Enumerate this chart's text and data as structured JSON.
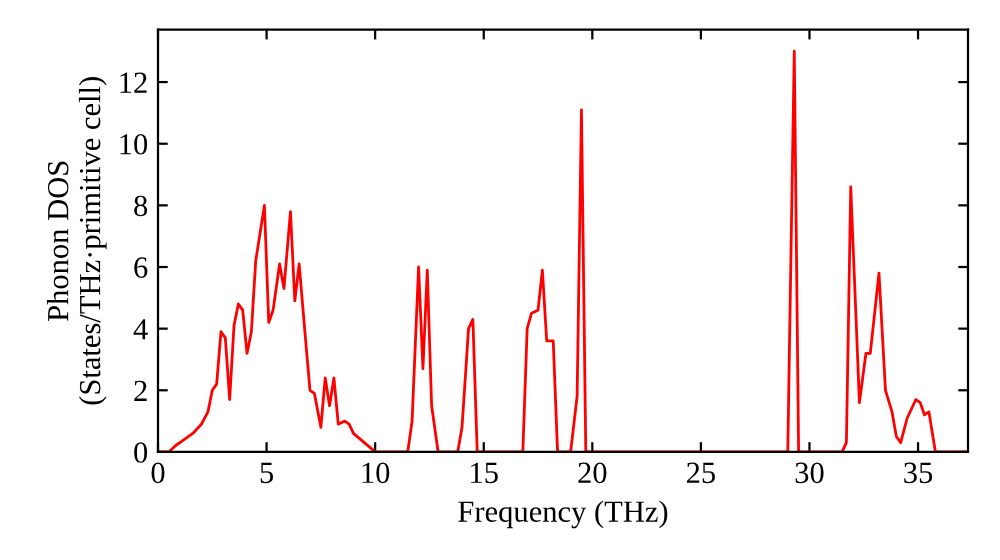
{
  "chart_data": {
    "type": "line",
    "xlabel": "Frequency (THz)",
    "ylabel": "Phonon DOS\n(States/THz·primitive cell)",
    "x": [
      0,
      0.5,
      0.8,
      1.2,
      1.6,
      2.0,
      2.3,
      2.5,
      2.7,
      2.9,
      3.1,
      3.3,
      3.5,
      3.7,
      3.9,
      4.1,
      4.3,
      4.5,
      4.9,
      5.1,
      5.3,
      5.6,
      5.8,
      6.1,
      6.3,
      6.5,
      6.8,
      7.0,
      7.2,
      7.5,
      7.7,
      7.9,
      8.1,
      8.3,
      8.6,
      8.8,
      9.0,
      9.5,
      10.0,
      11.5,
      11.7,
      12.0,
      12.2,
      12.4,
      12.6,
      12.9,
      13.8,
      14.0,
      14.3,
      14.5,
      14.7,
      16.8,
      17.0,
      17.2,
      17.5,
      17.7,
      17.9,
      18.2,
      18.4,
      19.0,
      19.3,
      19.5,
      19.7,
      29.0,
      29.3,
      29.5,
      31.5,
      31.7,
      31.9,
      32.3,
      32.6,
      32.8,
      33.2,
      33.5,
      33.8,
      34.0,
      34.2,
      34.5,
      34.9,
      35.1,
      35.3,
      35.5,
      35.8,
      37.3
    ],
    "series": [
      {
        "color": "#ff0000",
        "values": [
          0,
          0,
          0.2,
          0.4,
          0.6,
          0.9,
          1.3,
          2.0,
          2.2,
          3.9,
          3.7,
          1.7,
          4.1,
          4.8,
          4.6,
          3.2,
          3.9,
          6.2,
          8.0,
          4.2,
          4.6,
          6.1,
          5.3,
          7.8,
          4.9,
          6.1,
          3.6,
          2.0,
          1.9,
          0.8,
          2.4,
          1.5,
          2.4,
          0.9,
          1.0,
          0.9,
          0.6,
          0.3,
          0,
          0,
          1.0,
          6.0,
          2.7,
          5.9,
          1.5,
          0,
          0,
          0.8,
          4.0,
          4.3,
          0,
          0,
          4.0,
          4.5,
          4.6,
          5.9,
          3.6,
          3.6,
          0,
          0,
          1.8,
          11.1,
          0,
          0,
          13.0,
          0,
          0,
          0.3,
          8.6,
          1.6,
          3.2,
          3.2,
          5.8,
          2.0,
          1.3,
          0.5,
          0.3,
          1.1,
          1.7,
          1.6,
          1.2,
          1.3,
          0,
          0
        ]
      }
    ],
    "xlim": [
      0,
      37.3
    ],
    "ylim": [
      0,
      13.7
    ],
    "xticks": [
      0,
      5,
      10,
      15,
      20,
      25,
      30,
      35
    ],
    "yticks": [
      0,
      2,
      4,
      6,
      8,
      10,
      12
    ],
    "grid": false,
    "legend": false,
    "line_style": "solid",
    "marker": "none"
  }
}
